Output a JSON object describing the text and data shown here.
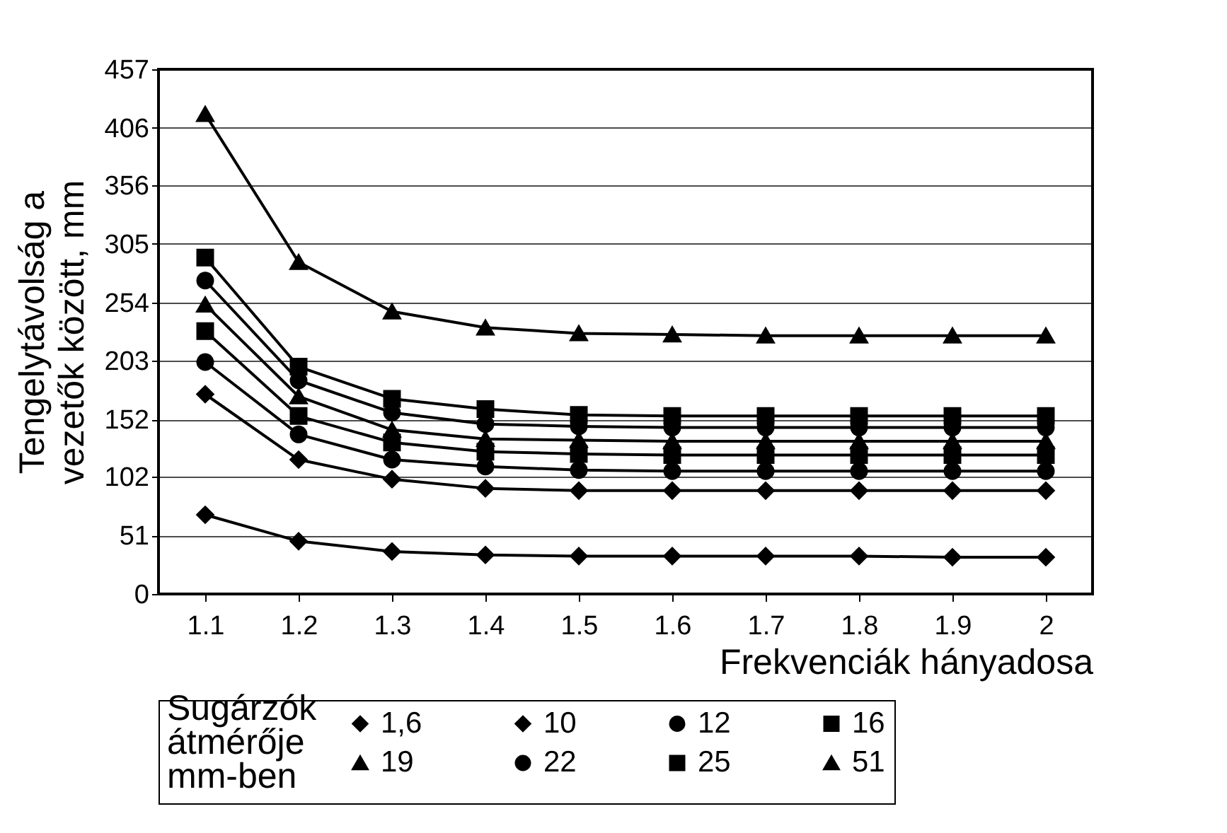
{
  "chart_data": {
    "type": "line",
    "xlabel": "Frekvenciák hányadosa",
    "ylabel": "Tengelytávolság a vezetők között, mm",
    "legend_title": "Sugárzók átmérője mm-ben",
    "x": [
      1.1,
      1.2,
      1.3,
      1.4,
      1.5,
      1.6,
      1.7,
      1.8,
      1.9,
      2
    ],
    "xlim": [
      1.05,
      2.05
    ],
    "xticks": [
      1.1,
      1.2,
      1.3,
      1.4,
      1.5,
      1.6,
      1.7,
      1.8,
      1.9,
      2
    ],
    "ylim": [
      0,
      457
    ],
    "yticks": [
      0,
      51,
      102,
      152,
      203,
      254,
      305,
      356,
      406,
      457
    ],
    "grid": "y",
    "legend": "bottom",
    "line_style": "solid",
    "series": [
      {
        "name": "1,6",
        "color": "#000000",
        "marker": "diamond",
        "values": [
          69,
          46,
          37,
          34,
          33,
          33,
          33,
          33,
          32,
          32
        ]
      },
      {
        "name": "10",
        "color": "#000000",
        "marker": "diamond",
        "values": [
          174,
          117,
          100,
          92,
          90,
          90,
          90,
          90,
          90,
          90
        ]
      },
      {
        "name": "12",
        "color": "#000000",
        "marker": "circle",
        "values": [
          202,
          139,
          117,
          111,
          108,
          107,
          107,
          107,
          107,
          107
        ]
      },
      {
        "name": "16",
        "color": "#000000",
        "marker": "square",
        "values": [
          229,
          155,
          132,
          124,
          122,
          121,
          121,
          121,
          121,
          121
        ]
      },
      {
        "name": "19",
        "color": "#000000",
        "marker": "triangle",
        "values": [
          252,
          172,
          143,
          135,
          134,
          133,
          133,
          133,
          133,
          133
        ]
      },
      {
        "name": "22",
        "color": "#000000",
        "marker": "circle",
        "values": [
          273,
          186,
          158,
          148,
          146,
          145,
          145,
          145,
          145,
          145
        ]
      },
      {
        "name": "25",
        "color": "#000000",
        "marker": "square",
        "values": [
          293,
          198,
          170,
          161,
          156,
          155,
          155,
          155,
          155,
          155
        ]
      },
      {
        "name": "51",
        "color": "#000000",
        "marker": "triangle",
        "values": [
          418,
          289,
          246,
          232,
          227,
          226,
          225,
          225,
          225,
          225
        ]
      }
    ]
  }
}
